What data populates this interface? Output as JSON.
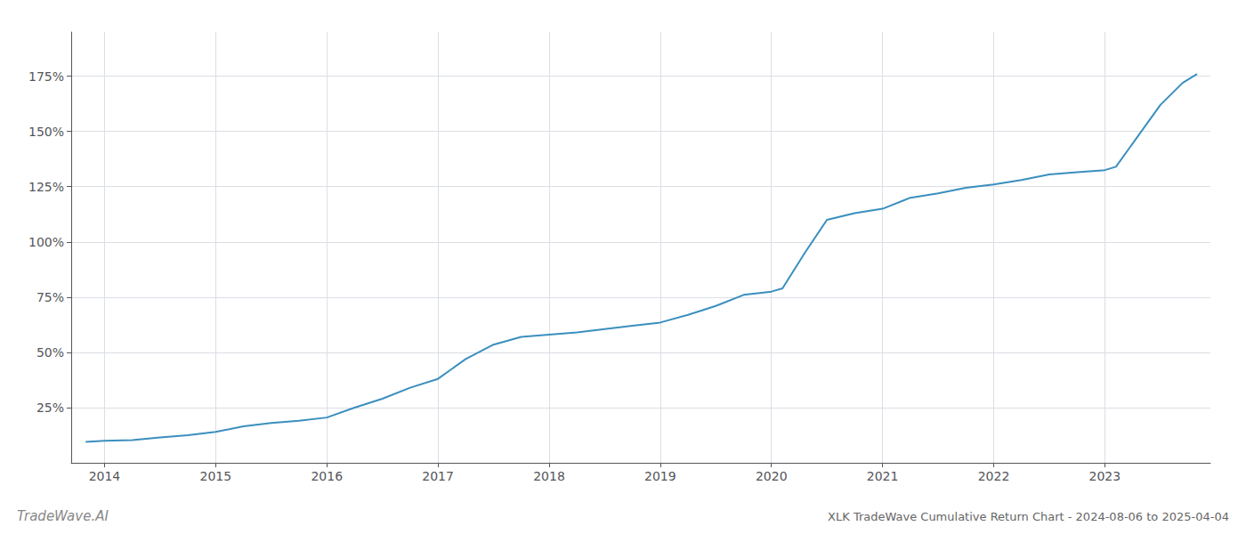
{
  "chart_data": {
    "type": "line",
    "title": "XLK TradeWave Cumulative Return Chart - 2024-08-06 to 2025-04-04",
    "annotations": [
      "TradeWave.AI"
    ],
    "color": "#3a8fbe",
    "x": [
      2013.83,
      2014.0,
      2014.25,
      2014.5,
      2014.75,
      2015.0,
      2015.25,
      2015.5,
      2015.75,
      2016.0,
      2016.25,
      2016.5,
      2016.75,
      2017.0,
      2017.25,
      2017.5,
      2017.75,
      2018.0,
      2018.25,
      2018.5,
      2018.75,
      2019.0,
      2019.25,
      2019.5,
      2019.75,
      2020.0,
      2020.1,
      2020.3,
      2020.5,
      2020.75,
      2021.0,
      2021.25,
      2021.5,
      2021.75,
      2022.0,
      2022.25,
      2022.5,
      2022.75,
      2023.0,
      2023.1,
      2023.3,
      2023.5,
      2023.7,
      2023.83
    ],
    "values": [
      9.5,
      10.0,
      10.3,
      11.5,
      12.5,
      14.0,
      16.5,
      18.0,
      19.0,
      20.5,
      25.0,
      29.0,
      34.0,
      38.0,
      47.0,
      53.5,
      57.0,
      58.0,
      59.0,
      60.5,
      62.0,
      63.5,
      67.0,
      71.0,
      76.0,
      77.5,
      79.0,
      95.0,
      110.0,
      113.0,
      115.0,
      120.0,
      122.0,
      124.5,
      126.0,
      128.0,
      130.5,
      131.5,
      132.5,
      134.0,
      148.0,
      162.0,
      172.0,
      176.0
    ],
    "xlim": [
      2013.7,
      2023.95
    ],
    "ylim": [
      0,
      195
    ],
    "xticks": [
      2014,
      2015,
      2016,
      2017,
      2018,
      2019,
      2020,
      2021,
      2022,
      2023
    ],
    "yticks": [
      {
        "value": 25,
        "label": "25%"
      },
      {
        "value": 50,
        "label": "50%"
      },
      {
        "value": 75,
        "label": "75%"
      },
      {
        "value": 100,
        "label": "100%"
      },
      {
        "value": 125,
        "label": "125%"
      },
      {
        "value": 150,
        "label": "150%"
      },
      {
        "value": 175,
        "label": "175%"
      }
    ],
    "grid": true
  }
}
